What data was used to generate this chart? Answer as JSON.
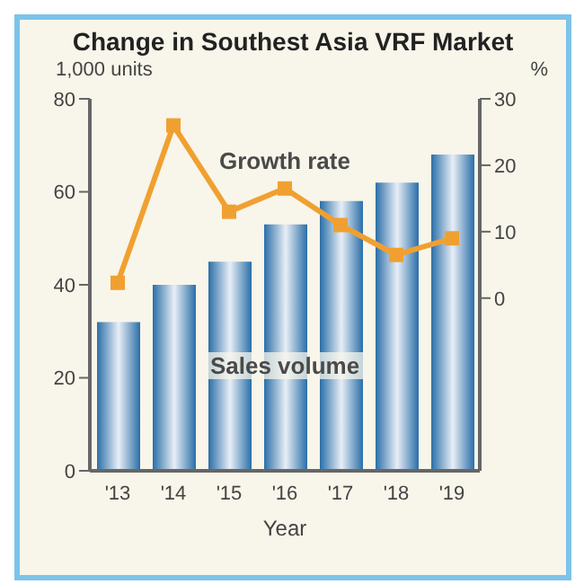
{
  "chart_data": {
    "type": "bar",
    "title": "Change in Southest Asia VRF Market",
    "xlabel": "Year",
    "ylabel": "1,000 units",
    "y2label": "%",
    "categories": [
      "'13",
      "'14",
      "'15",
      "'16",
      "'17",
      "'18",
      "'19"
    ],
    "series": [
      {
        "name": "Sales volume",
        "color": "#2a6fa8",
        "values": [
          32,
          40,
          45,
          53,
          58,
          62,
          68
        ]
      },
      {
        "name": "Growth rate",
        "type": "line",
        "axis": "y2",
        "color": "#f0a030",
        "marker": "square",
        "values": [
          2.3,
          26,
          13,
          16.5,
          11,
          6.5,
          9
        ]
      }
    ],
    "ylim": [
      0,
      80
    ],
    "yticks": [
      0,
      20,
      40,
      60,
      80
    ],
    "y2lim": [
      -26,
      30
    ],
    "y2ticks": [
      0,
      10,
      20,
      30
    ]
  }
}
